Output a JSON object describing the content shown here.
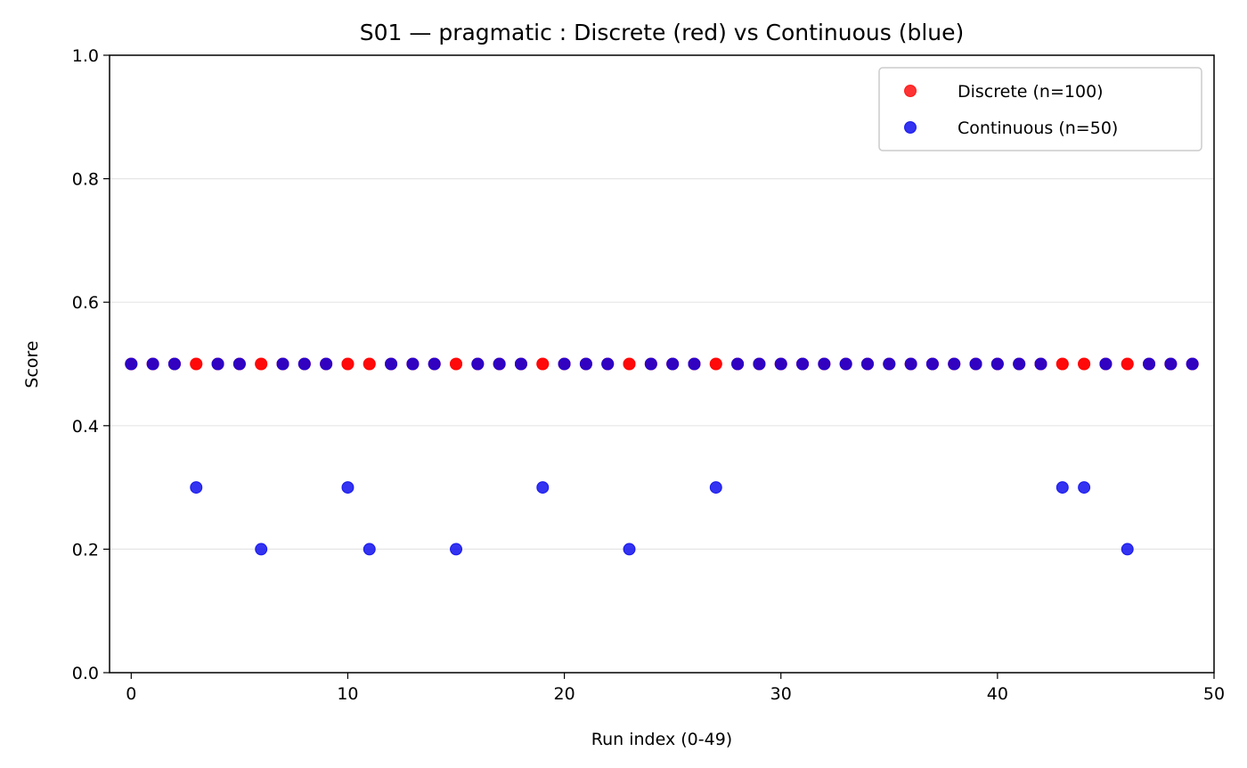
{
  "chart_data": {
    "type": "scatter",
    "title": "S01 — pragmatic : Discrete (red) vs Continuous (blue)",
    "xlabel": "Run index (0-49)",
    "ylabel": "Score",
    "xlim": [
      -1,
      50
    ],
    "ylim": [
      0,
      1
    ],
    "xticks": [
      0,
      10,
      20,
      30,
      40,
      50
    ],
    "yticks": [
      0.0,
      0.2,
      0.4,
      0.6,
      0.8,
      1.0
    ],
    "xtick_labels": [
      "0",
      "10",
      "20",
      "30",
      "40",
      "50"
    ],
    "ytick_labels": [
      "0.0",
      "0.2",
      "0.4",
      "0.6",
      "0.8",
      "1.0"
    ],
    "grid": "horizontal",
    "legend_position": "top-right",
    "series": [
      {
        "name": "Discrete (n=100)",
        "color": "#ff0000",
        "x": [
          0,
          0,
          1,
          1,
          2,
          2,
          3,
          3,
          4,
          4,
          5,
          5,
          6,
          6,
          7,
          7,
          8,
          8,
          9,
          9,
          10,
          10,
          11,
          11,
          12,
          12,
          13,
          13,
          14,
          14,
          15,
          15,
          16,
          16,
          17,
          17,
          18,
          18,
          19,
          19,
          20,
          20,
          21,
          21,
          22,
          22,
          23,
          23,
          24,
          24,
          25,
          25,
          26,
          26,
          27,
          27,
          28,
          28,
          29,
          29,
          30,
          30,
          31,
          31,
          32,
          32,
          33,
          33,
          34,
          34,
          35,
          35,
          36,
          36,
          37,
          37,
          38,
          38,
          39,
          39,
          40,
          40,
          41,
          41,
          42,
          42,
          43,
          43,
          44,
          44,
          45,
          45,
          46,
          46,
          47,
          47,
          48,
          48,
          49,
          49
        ],
        "y": [
          0.5,
          0.5,
          0.5,
          0.5,
          0.5,
          0.5,
          0.5,
          0.5,
          0.5,
          0.5,
          0.5,
          0.5,
          0.5,
          0.5,
          0.5,
          0.5,
          0.5,
          0.5,
          0.5,
          0.5,
          0.5,
          0.5,
          0.5,
          0.5,
          0.5,
          0.5,
          0.5,
          0.5,
          0.5,
          0.5,
          0.5,
          0.5,
          0.5,
          0.5,
          0.5,
          0.5,
          0.5,
          0.5,
          0.5,
          0.5,
          0.5,
          0.5,
          0.5,
          0.5,
          0.5,
          0.5,
          0.5,
          0.5,
          0.5,
          0.5,
          0.5,
          0.5,
          0.5,
          0.5,
          0.5,
          0.5,
          0.5,
          0.5,
          0.5,
          0.5,
          0.5,
          0.5,
          0.5,
          0.5,
          0.5,
          0.5,
          0.5,
          0.5,
          0.5,
          0.5,
          0.5,
          0.5,
          0.5,
          0.5,
          0.5,
          0.5,
          0.5,
          0.5,
          0.5,
          0.5,
          0.5,
          0.5,
          0.5,
          0.5,
          0.5,
          0.5,
          0.5,
          0.5,
          0.5,
          0.5,
          0.5,
          0.5,
          0.5,
          0.5,
          0.5,
          0.5,
          0.5,
          0.5,
          0.5,
          0.5
        ]
      },
      {
        "name": "Continuous (n=50)",
        "color": "#0000ee",
        "x": [
          0,
          1,
          2,
          3,
          4,
          5,
          6,
          7,
          8,
          9,
          10,
          11,
          12,
          13,
          14,
          15,
          16,
          17,
          18,
          19,
          20,
          21,
          22,
          23,
          24,
          25,
          26,
          27,
          28,
          29,
          30,
          31,
          32,
          33,
          34,
          35,
          36,
          37,
          38,
          39,
          40,
          41,
          42,
          43,
          44,
          45,
          46,
          47,
          48,
          49
        ],
        "y": [
          0.5,
          0.5,
          0.5,
          0.3,
          0.5,
          0.5,
          0.2,
          0.5,
          0.5,
          0.5,
          0.3,
          0.2,
          0.5,
          0.5,
          0.5,
          0.2,
          0.5,
          0.5,
          0.5,
          0.3,
          0.5,
          0.5,
          0.5,
          0.2,
          0.5,
          0.5,
          0.5,
          0.3,
          0.5,
          0.5,
          0.5,
          0.5,
          0.5,
          0.5,
          0.5,
          0.5,
          0.5,
          0.5,
          0.5,
          0.5,
          0.5,
          0.5,
          0.5,
          0.3,
          0.3,
          0.5,
          0.2,
          0.5,
          0.5,
          0.5
        ]
      }
    ]
  }
}
